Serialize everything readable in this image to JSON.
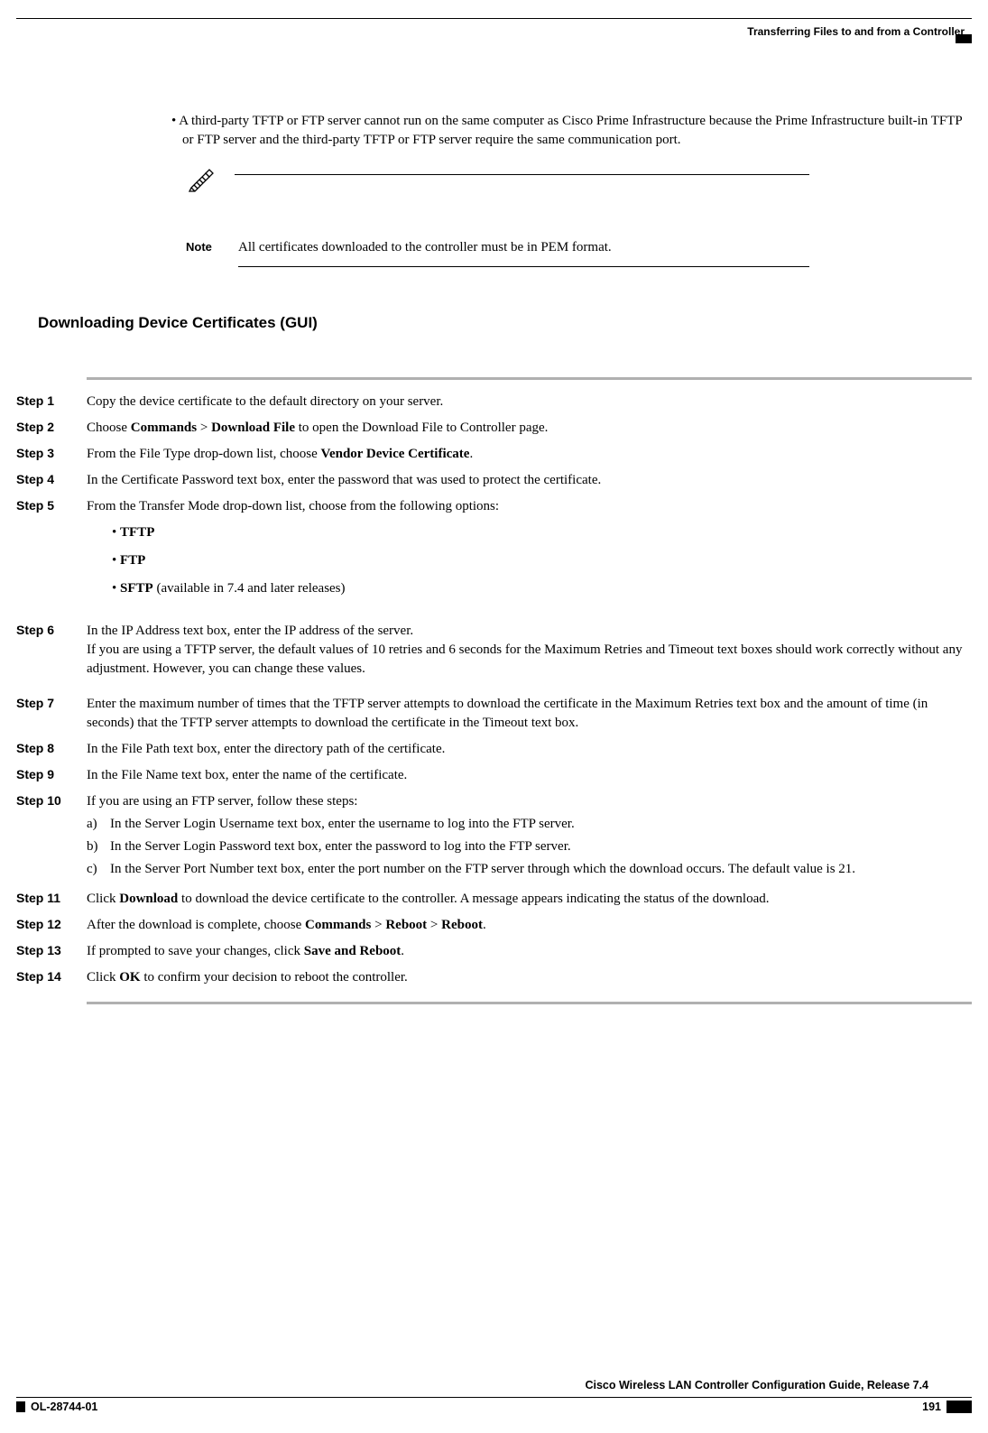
{
  "header": {
    "running_head": "Transferring Files to and from a Controller"
  },
  "intro": {
    "bullet": "A third-party TFTP or FTP server cannot run on the same computer as Cisco Prime Infrastructure because the Prime Infrastructure built-in TFTP or FTP server and the third-party TFTP or FTP server require the same communication port."
  },
  "note": {
    "label": "Note",
    "text": "All certificates downloaded to the controller must be in PEM format."
  },
  "section": {
    "heading": "Downloading Device Certificates (GUI)"
  },
  "steps": [
    {
      "label": "Step 1",
      "html": "Copy the device certificate to the default directory on your server."
    },
    {
      "label": "Step 2",
      "html": "Choose <b>Commands</b> &gt; <b>Download File</b> to open the Download File to Controller page."
    },
    {
      "label": "Step 3",
      "html": "From the File Type drop-down list, choose <b>Vendor Device Certificate</b>."
    },
    {
      "label": "Step 4",
      "html": "In the Certificate Password text box, enter the password that was used to protect the certificate."
    },
    {
      "label": "Step 5",
      "html": "From the Transfer Mode drop-down list, choose from the following options:",
      "sublist": [
        "<b>TFTP</b>",
        "<b>FTP</b>",
        "<b>SFTP</b> (available in 7.4 and later releases)"
      ]
    },
    {
      "label": "Step 6",
      "html": "In the IP Address text box, enter the IP address of the server.<br>If you are using a TFTP server, the default values of 10 retries and 6 seconds for the Maximum Retries and Timeout text boxes should work correctly without any adjustment. However, you can change these values.",
      "gap": true
    },
    {
      "label": "Step 7",
      "html": "Enter the maximum number of times that the TFTP server attempts to download the certificate in the Maximum Retries text box and the amount of time (in seconds) that the TFTP server attempts to download the certificate in the Timeout text box.",
      "gap": true
    },
    {
      "label": "Step 8",
      "html": "In the File Path text box, enter the directory path of the certificate."
    },
    {
      "label": "Step 9",
      "html": "In the File Name text box, enter the name of the certificate."
    },
    {
      "label": "Step 10",
      "html": "If you are using an FTP server, follow these steps:",
      "ol": [
        {
          "marker": "a)",
          "text": "In the Server Login Username text box, enter the username to log into the FTP server."
        },
        {
          "marker": "b)",
          "text": "In the Server Login Password text box, enter the password to log into the FTP server."
        },
        {
          "marker": "c)",
          "text": "In the Server Port Number text box, enter the port number on the FTP server through which the download occurs. The default value is 21."
        }
      ]
    },
    {
      "label": "Step 11",
      "html": "Click <b>Download</b> to download the device certificate to the controller. A message appears indicating the status of the download."
    },
    {
      "label": "Step 12",
      "html": "After the download is complete, choose <b>Commands</b> &gt; <b>Reboot</b> &gt; <b>Reboot</b>."
    },
    {
      "label": "Step 13",
      "html": "If prompted to save your changes, click <b>Save and Reboot</b>."
    },
    {
      "label": "Step 14",
      "html": "Click <b>OK</b> to confirm your decision to reboot the controller."
    }
  ],
  "footer": {
    "title": "Cisco Wireless LAN Controller Configuration Guide, Release 7.4",
    "doc_id": "OL-28744-01",
    "page": "191"
  }
}
